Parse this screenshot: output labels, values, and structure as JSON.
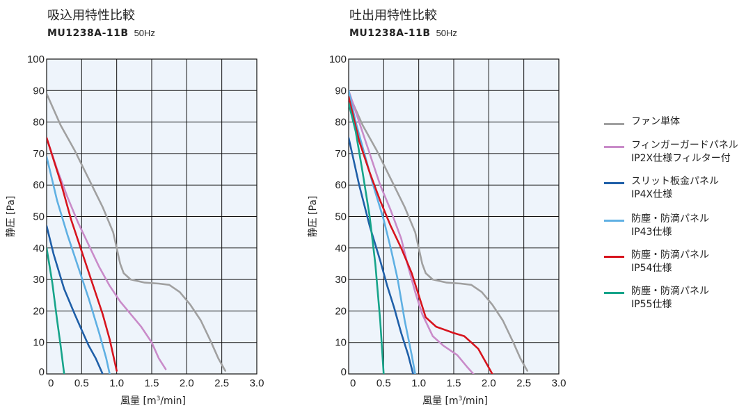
{
  "legend": [
    {
      "label": "ファン単体",
      "color": "#a0a0a0"
    },
    {
      "label": "フィンガーガードパネル\nIP2X仕様フィルター付",
      "color": "#c98bc9"
    },
    {
      "label": "スリット板金パネル\nIP4X仕様",
      "color": "#1f5fa8"
    },
    {
      "label": "防塵・防滴パネル\nIP43仕様",
      "color": "#5fb0e3"
    },
    {
      "label": "防塵・防滴パネル\nIP54仕様",
      "color": "#d7141e"
    },
    {
      "label": "防塵・防滴パネル\nIP55仕様",
      "color": "#16a48a"
    }
  ],
  "chart_data": [
    {
      "type": "line",
      "title": "吸込用特性比較",
      "subtitle_model": "MU1238A-11B",
      "subtitle_freq": "50Hz",
      "xlabel": "風量 [m³/min]",
      "ylabel": "静圧 [Pa]",
      "xlim": [
        0,
        3.0
      ],
      "ylim": [
        0,
        100
      ],
      "x_ticks": [
        "0",
        "0.5",
        "1.0",
        "1.5",
        "2.0",
        "2.5",
        "3.0"
      ],
      "y_ticks": [
        "0",
        "10",
        "20",
        "30",
        "40",
        "50",
        "60",
        "70",
        "80",
        "90",
        "100"
      ],
      "grid": true,
      "series": [
        {
          "name": "ファン単体",
          "color": "#a0a0a0",
          "points": [
            [
              0,
              89
            ],
            [
              0.2,
              79
            ],
            [
              0.4,
              71
            ],
            [
              0.6,
              62
            ],
            [
              0.8,
              53
            ],
            [
              0.95,
              45
            ],
            [
              1.0,
              40
            ],
            [
              1.05,
              35
            ],
            [
              1.1,
              32
            ],
            [
              1.2,
              30
            ],
            [
              1.4,
              29
            ],
            [
              1.6,
              28.7
            ],
            [
              1.75,
              28.3
            ],
            [
              1.9,
              26
            ],
            [
              2.05,
              22
            ],
            [
              2.2,
              17
            ],
            [
              2.35,
              10
            ],
            [
              2.45,
              5
            ],
            [
              2.55,
              1
            ]
          ]
        },
        {
          "name": "フィンガーガードパネル\nIP2X仕様フィルター付",
          "color": "#c98bc9",
          "points": [
            [
              0,
              75
            ],
            [
              0.15,
              65
            ],
            [
              0.3,
              56
            ],
            [
              0.45,
              48
            ],
            [
              0.6,
              41
            ],
            [
              0.75,
              34
            ],
            [
              0.9,
              28
            ],
            [
              1.05,
              23
            ],
            [
              1.2,
              19
            ],
            [
              1.35,
              15
            ],
            [
              1.5,
              10
            ],
            [
              1.6,
              5
            ],
            [
              1.7,
              1.5
            ]
          ]
        },
        {
          "name": "スリット板金パネル\nIP4X仕様",
          "color": "#1f5fa8",
          "points": [
            [
              0,
              47
            ],
            [
              0.1,
              38
            ],
            [
              0.25,
              27
            ],
            [
              0.4,
              19
            ],
            [
              0.5,
              14
            ],
            [
              0.6,
              9
            ],
            [
              0.7,
              5
            ],
            [
              0.8,
              0
            ]
          ]
        },
        {
          "name": "防塵・防滴パネル\nIP43仕様",
          "color": "#5fb0e3",
          "points": [
            [
              0,
              69
            ],
            [
              0.15,
              55
            ],
            [
              0.3,
              44
            ],
            [
              0.45,
              34
            ],
            [
              0.6,
              24
            ],
            [
              0.75,
              13
            ],
            [
              0.85,
              5
            ],
            [
              0.9,
              0
            ]
          ]
        },
        {
          "name": "防塵・防滴パネル\nIP54仕様",
          "color": "#d7141e",
          "points": [
            [
              0,
              75
            ],
            [
              0.2,
              61
            ],
            [
              0.35,
              49
            ],
            [
              0.5,
              39
            ],
            [
              0.65,
              29
            ],
            [
              0.8,
              19
            ],
            [
              0.9,
              11
            ],
            [
              1.0,
              1
            ]
          ]
        },
        {
          "name": "防塵・防滴パネル\nIP55仕様",
          "color": "#16a48a",
          "points": [
            [
              0,
              40
            ],
            [
              0.08,
              29
            ],
            [
              0.15,
              17
            ],
            [
              0.2,
              9
            ],
            [
              0.25,
              0
            ]
          ]
        }
      ]
    },
    {
      "type": "line",
      "title": "吐出用特性比較",
      "subtitle_model": "MU1238A-11B",
      "subtitle_freq": "50Hz",
      "xlabel": "風量 [m³/min]",
      "ylabel": "静圧 [Pa]",
      "xlim": [
        0,
        3.0
      ],
      "ylim": [
        0,
        100
      ],
      "x_ticks": [
        "0",
        "0.5",
        "1.0",
        "1.5",
        "2.0",
        "2.5",
        "3.0"
      ],
      "y_ticks": [
        "0",
        "10",
        "20",
        "30",
        "40",
        "50",
        "60",
        "70",
        "80",
        "90",
        "100"
      ],
      "grid": true,
      "series": [
        {
          "name": "ファン単体",
          "color": "#a0a0a0",
          "points": [
            [
              0,
              89
            ],
            [
              0.2,
              79
            ],
            [
              0.4,
              71
            ],
            [
              0.6,
              62
            ],
            [
              0.8,
              53
            ],
            [
              0.95,
              45
            ],
            [
              1.0,
              40
            ],
            [
              1.05,
              35
            ],
            [
              1.1,
              32
            ],
            [
              1.2,
              30
            ],
            [
              1.4,
              29
            ],
            [
              1.6,
              28.7
            ],
            [
              1.75,
              28.3
            ],
            [
              1.9,
              26
            ],
            [
              2.05,
              22
            ],
            [
              2.2,
              17
            ],
            [
              2.35,
              10
            ],
            [
              2.45,
              5
            ],
            [
              2.55,
              1
            ]
          ]
        },
        {
          "name": "フィンガーガードパネル\nIP2X仕様フィルター付",
          "color": "#c98bc9",
          "points": [
            [
              0,
              90
            ],
            [
              0.15,
              80
            ],
            [
              0.3,
              70
            ],
            [
              0.45,
              60
            ],
            [
              0.6,
              52
            ],
            [
              0.75,
              43
            ],
            [
              0.85,
              34
            ],
            [
              0.95,
              26
            ],
            [
              1.05,
              19
            ],
            [
              1.2,
              12
            ],
            [
              1.35,
              9
            ],
            [
              1.55,
              6
            ],
            [
              1.7,
              2
            ],
            [
              1.78,
              0
            ]
          ]
        },
        {
          "name": "スリット板金パネル\nIP4X仕様",
          "color": "#1f5fa8",
          "points": [
            [
              0,
              75
            ],
            [
              0.15,
              60
            ],
            [
              0.3,
              47
            ],
            [
              0.45,
              36
            ],
            [
              0.55,
              28
            ],
            [
              0.65,
              21
            ],
            [
              0.75,
              13
            ],
            [
              0.85,
              6
            ],
            [
              0.92,
              0
            ]
          ]
        },
        {
          "name": "防塵・防滴パネル\nIP43仕様",
          "color": "#5fb0e3",
          "points": [
            [
              0,
              90
            ],
            [
              0.1,
              80
            ],
            [
              0.2,
              72
            ],
            [
              0.35,
              60
            ],
            [
              0.5,
              49
            ],
            [
              0.6,
              40
            ],
            [
              0.7,
              30
            ],
            [
              0.8,
              17
            ],
            [
              0.9,
              6
            ],
            [
              0.95,
              0
            ]
          ]
        },
        {
          "name": "防塵・防滴パネル\nIP54仕様",
          "color": "#d7141e",
          "points": [
            [
              0,
              88
            ],
            [
              0.15,
              74
            ],
            [
              0.3,
              64
            ],
            [
              0.45,
              55
            ],
            [
              0.6,
              47
            ],
            [
              0.75,
              40
            ],
            [
              0.9,
              32
            ],
            [
              1.0,
              25
            ],
            [
              1.1,
              18
            ],
            [
              1.25,
              15
            ],
            [
              1.5,
              13
            ],
            [
              1.65,
              12
            ],
            [
              1.75,
              10
            ],
            [
              1.85,
              8
            ],
            [
              1.95,
              4
            ],
            [
              2.05,
              0
            ]
          ]
        },
        {
          "name": "防塵・防滴パネル\nIP55仕様",
          "color": "#16a48a",
          "points": [
            [
              0,
              86
            ],
            [
              0.1,
              77
            ],
            [
              0.2,
              64
            ],
            [
              0.3,
              50
            ],
            [
              0.38,
              35
            ],
            [
              0.45,
              17
            ],
            [
              0.5,
              0
            ]
          ]
        }
      ]
    }
  ]
}
